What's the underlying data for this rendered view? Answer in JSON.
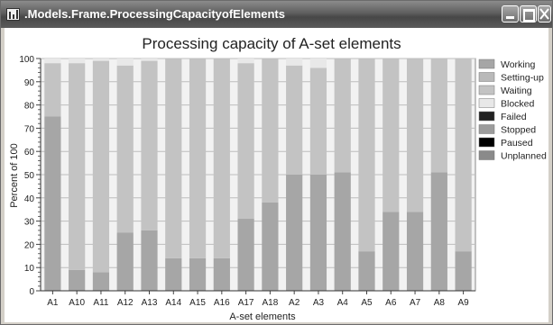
{
  "window": {
    "title": ".Models.Frame.ProcessingCapacityofElements",
    "app_icon": "chart-app-icon",
    "controls": [
      "minimize-icon",
      "maximize-icon",
      "close-icon"
    ]
  },
  "chart_data": {
    "type": "bar",
    "stacked": true,
    "title": "Processing capacity of A-set elements",
    "xlabel": "A-set elements",
    "ylabel": "Percent of 100",
    "ylim": [
      0,
      100
    ],
    "yticks": [
      0,
      10,
      20,
      30,
      40,
      50,
      60,
      70,
      80,
      90,
      100
    ],
    "legend_position": "right",
    "grid": true,
    "categories": [
      "A1",
      "A10",
      "A11",
      "A12",
      "A13",
      "A14",
      "A15",
      "A16",
      "A17",
      "A18",
      "A2",
      "A3",
      "A4",
      "A5",
      "A6",
      "A7",
      "A8",
      "A9"
    ],
    "series": [
      {
        "name": "Working",
        "color": "#a6a6a6",
        "values": [
          75,
          9,
          8,
          25,
          26,
          14,
          14,
          14,
          31,
          38,
          50,
          50,
          51,
          17,
          34,
          34,
          51,
          17
        ]
      },
      {
        "name": "Setting-up",
        "color": "#b9b9b9",
        "values": [
          0,
          0,
          0,
          0,
          0,
          0,
          0,
          0,
          0,
          0,
          0,
          0,
          0,
          0,
          0,
          0,
          0,
          0
        ]
      },
      {
        "name": "Waiting",
        "color": "#c3c3c3",
        "values": [
          23,
          89,
          91,
          72,
          73,
          86,
          86,
          86,
          67,
          62,
          47,
          46,
          49,
          83,
          66,
          66,
          49,
          83
        ]
      },
      {
        "name": "Blocked",
        "color": "#e8e8e8",
        "values": [
          2,
          2,
          1,
          3,
          1,
          0,
          0,
          0,
          2,
          0,
          3,
          4,
          0,
          0,
          0,
          0,
          0,
          0
        ]
      },
      {
        "name": "Failed",
        "color": "#222222",
        "values": [
          0,
          0,
          0,
          0,
          0,
          0,
          0,
          0,
          0,
          0,
          0,
          0,
          0,
          0,
          0,
          0,
          0,
          0
        ]
      },
      {
        "name": "Stopped",
        "color": "#9c9c9c",
        "values": [
          0,
          0,
          0,
          0,
          0,
          0,
          0,
          0,
          0,
          0,
          0,
          0,
          0,
          0,
          0,
          0,
          0,
          0
        ]
      },
      {
        "name": "Paused",
        "color": "#000000",
        "values": [
          0,
          0,
          0,
          0,
          0,
          0,
          0,
          0,
          0,
          0,
          0,
          0,
          0,
          0,
          0,
          0,
          0,
          0
        ]
      },
      {
        "name": "Unplanned",
        "color": "#8a8a8a",
        "values": [
          0,
          0,
          0,
          0,
          0,
          0,
          0,
          0,
          0,
          0,
          0,
          0,
          0,
          0,
          0,
          0,
          0,
          0
        ]
      }
    ],
    "plot_background": "#f2f2f2",
    "gridline_color": "#bdbdbd"
  }
}
